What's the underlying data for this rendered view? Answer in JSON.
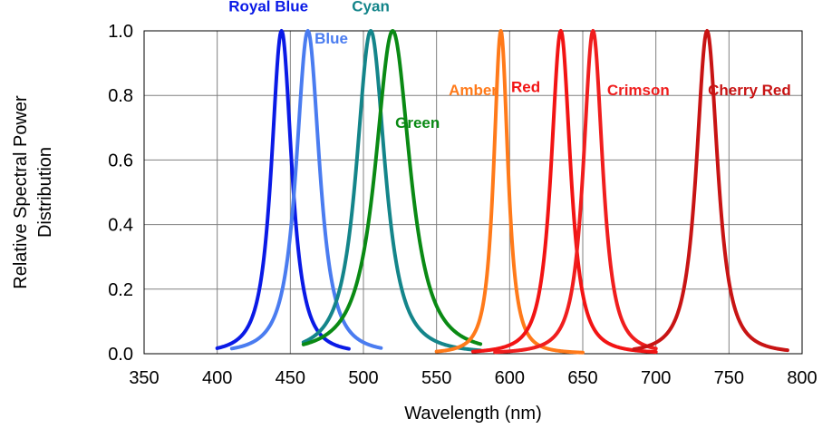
{
  "chart_data": {
    "type": "line",
    "title": "",
    "xlabel": "Wavelength (nm)",
    "ylabel_lines": [
      "Relative Spectral Power",
      "Distribution"
    ],
    "xlim": [
      350,
      800
    ],
    "ylim": [
      0.0,
      1.0
    ],
    "x_ticks": [
      "350",
      "400",
      "450",
      "500",
      "550",
      "600",
      "650",
      "700",
      "750",
      "800"
    ],
    "y_ticks": [
      "0.0",
      "0.2",
      "0.4",
      "0.6",
      "0.8",
      "1.0"
    ],
    "grid": true,
    "legend": "none",
    "series": [
      {
        "name": "Royal Blue",
        "color": "#0a1ae6",
        "peak": 444,
        "fwhm": 20,
        "range": [
          400,
          490
        ]
      },
      {
        "name": "Blue",
        "color": "#4a7cf0",
        "peak": 462,
        "fwhm": 23,
        "range": [
          410,
          512
        ]
      },
      {
        "name": "Cyan",
        "color": "#14858a",
        "peak": 505,
        "fwhm": 28,
        "range": [
          459,
          580
        ]
      },
      {
        "name": "Green",
        "color": "#0a8a14",
        "peak": 520,
        "fwhm": 34,
        "range": [
          459,
          580
        ]
      },
      {
        "name": "Amber",
        "color": "#ff7a1a",
        "peak": 594,
        "fwhm": 14,
        "range": [
          550,
          650
        ]
      },
      {
        "name": "Red",
        "color": "#f21414",
        "peak": 635,
        "fwhm": 19,
        "range": [
          575,
          700
        ]
      },
      {
        "name": "Crimson",
        "color": "#f01e1e",
        "peak": 657,
        "fwhm": 19,
        "range": [
          590,
          700
        ]
      },
      {
        "name": "Cherry Red",
        "color": "#c81414",
        "peak": 735,
        "fwhm": 21,
        "range": [
          685,
          790
        ]
      }
    ],
    "labels": [
      {
        "text": "Royal Blue",
        "color": "#0a1ae6",
        "x": 435,
        "y": 1.06
      },
      {
        "text": "Blue",
        "color": "#4a7cf0",
        "x": 478,
        "y": 0.96
      },
      {
        "text": "Cyan",
        "color": "#14858a",
        "x": 505,
        "y": 1.06
      },
      {
        "text": "Green",
        "color": "#0a8a14",
        "x": 537,
        "y": 0.7
      },
      {
        "text": "Amber",
        "color": "#ff7a1a",
        "x": 575,
        "y": 0.8
      },
      {
        "text": "Red",
        "color": "#f21414",
        "x": 611,
        "y": 0.81
      },
      {
        "text": "Crimson",
        "color": "#f01e1e",
        "x": 688,
        "y": 0.8
      },
      {
        "text": "Cherry Red",
        "color": "#c81414",
        "x": 764,
        "y": 0.8
      }
    ]
  }
}
